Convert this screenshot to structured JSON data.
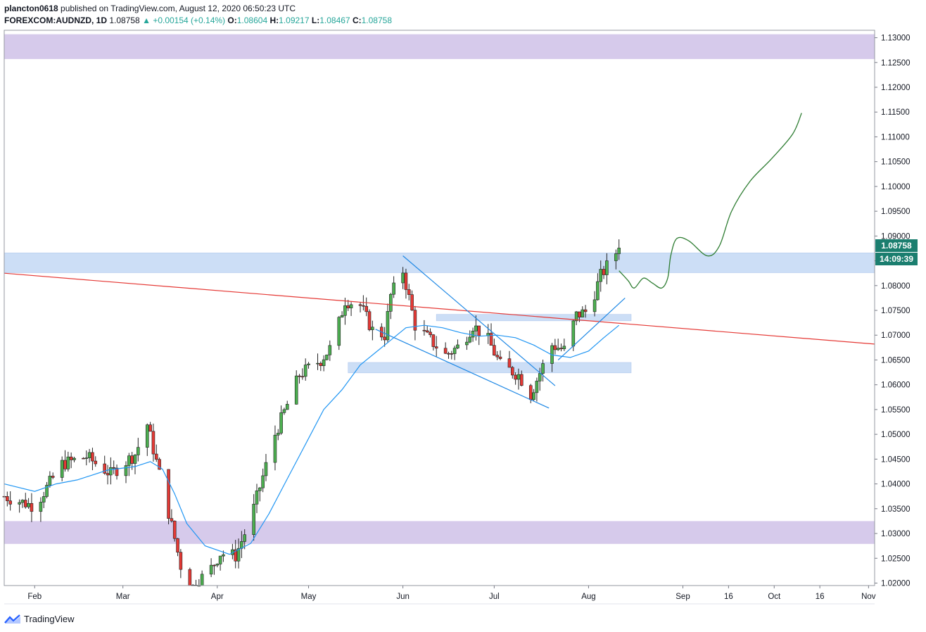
{
  "header": {
    "author": "plancton0618",
    "published": "published on TradingView.com, August 12, 2020 06:50:23 UTC",
    "symbol": "FOREXCOM:AUDNZD, 1D",
    "last": "1.08758",
    "change": "+0.00154 (+0.14%)",
    "o_label": "O:",
    "o": "1.08604",
    "h_label": "H:",
    "h": "1.09217",
    "l_label": "L:",
    "l": "1.08467",
    "c_label": "C:",
    "c": "1.08758"
  },
  "price_label": "1.08758",
  "countdown_label": "14:09:39",
  "footer": {
    "brand": "TradingView"
  },
  "colors": {
    "up": "#26a69a",
    "down": "#ef5350",
    "bull_candle": "#4caf50",
    "bear_candle": "#e53935",
    "ma": "#2196f3",
    "trendline_red": "#e53935",
    "trendline_blue": "#1e88e5",
    "projection": "#2e7d32",
    "zone_purple": "#d1c4e9",
    "zone_blue": "#bbd3f4",
    "price_badge": "#1b7e6f"
  },
  "chart_data": {
    "type": "candlestick",
    "ylim": [
      1.0195,
      1.1315
    ],
    "y_ticks": [
      "1.13000",
      "1.12500",
      "1.12000",
      "1.11500",
      "1.11000",
      "1.10500",
      "1.10000",
      "1.09500",
      "1.09000",
      "1.08500",
      "1.08000",
      "1.07500",
      "1.07000",
      "1.06500",
      "1.06000",
      "1.05500",
      "1.05000",
      "1.04500",
      "1.04000",
      "1.03500",
      "1.03000",
      "1.02500",
      "1.02000"
    ],
    "x_ticks": [
      {
        "label": "Feb",
        "date": "2020-02-01"
      },
      {
        "label": "Mar",
        "date": "2020-03-01"
      },
      {
        "label": "Apr",
        "date": "2020-04-01"
      },
      {
        "label": "May",
        "date": "2020-05-01"
      },
      {
        "label": "Jun",
        "date": "2020-06-01"
      },
      {
        "label": "Jul",
        "date": "2020-07-01"
      },
      {
        "label": "Aug",
        "date": "2020-08-01"
      },
      {
        "label": "Sep",
        "date": "2020-09-01"
      },
      {
        "label": "16",
        "date": "2020-09-16"
      },
      {
        "label": "Oct",
        "date": "2020-10-01"
      },
      {
        "label": "16",
        "date": "2020-10-16"
      },
      {
        "label": "Nov",
        "date": "2020-11-01"
      }
    ],
    "zones": [
      {
        "color": "purple",
        "from": 1.1257,
        "to": 1.1307
      },
      {
        "color": "purple",
        "from": 1.0279,
        "to": 1.0325
      },
      {
        "color": "blue",
        "from": 1.0826,
        "to": 1.0866
      },
      {
        "color": "blue",
        "from": 1.0729,
        "to": 1.0742
      },
      {
        "color": "blue",
        "from": 1.0624,
        "to": 1.0645
      }
    ],
    "key_dates": [
      "2020-01-22",
      "2020-02-01",
      "2020-08-11"
    ],
    "ohlc_anchor_points": [
      [
        "2020-01-22",
        1.0375
      ],
      [
        "2020-02-01",
        1.0355
      ],
      [
        "2020-02-10",
        1.044
      ],
      [
        "2020-02-18",
        1.0455
      ],
      [
        "2020-02-26",
        1.042
      ],
      [
        "2020-03-05",
        1.046
      ],
      [
        "2020-03-09",
        1.052
      ],
      [
        "2020-03-13",
        1.042
      ],
      [
        "2020-03-18",
        1.029
      ],
      [
        "2020-03-22",
        1.018
      ],
      [
        "2020-03-30",
        1.023
      ],
      [
        "2020-04-02",
        1.026
      ],
      [
        "2020-04-07",
        1.0255
      ],
      [
        "2020-04-12",
        1.033
      ],
      [
        "2020-04-20",
        1.05
      ],
      [
        "2020-04-28",
        1.062
      ],
      [
        "2020-05-05",
        1.065
      ],
      [
        "2020-05-09",
        1.068
      ],
      [
        "2020-05-13",
        1.077
      ],
      [
        "2020-05-18",
        1.076
      ],
      [
        "2020-05-22",
        1.071
      ],
      [
        "2020-05-26",
        1.07
      ],
      [
        "2020-05-28",
        1.078
      ],
      [
        "2020-06-01",
        1.083
      ],
      [
        "2020-06-05",
        1.072
      ],
      [
        "2020-06-10",
        1.069
      ],
      [
        "2020-06-15",
        1.066
      ],
      [
        "2020-06-20",
        1.068
      ],
      [
        "2020-06-24",
        1.072
      ],
      [
        "2020-06-29",
        1.069
      ],
      [
        "2020-07-03",
        1.064
      ],
      [
        "2020-07-09",
        1.062
      ],
      [
        "2020-07-13",
        1.058
      ],
      [
        "2020-07-15",
        1.061
      ],
      [
        "2020-07-20",
        1.068
      ],
      [
        "2020-07-24",
        1.067
      ],
      [
        "2020-07-28",
        1.074
      ],
      [
        "2020-08-01",
        1.075
      ],
      [
        "2020-08-05",
        1.082
      ],
      [
        "2020-08-11",
        1.0876
      ]
    ],
    "ma_points": [
      [
        "2020-01-22",
        1.04
      ],
      [
        "2020-02-01",
        1.0385
      ],
      [
        "2020-02-08",
        1.04
      ],
      [
        "2020-02-15",
        1.0408
      ],
      [
        "2020-02-25",
        1.0428
      ],
      [
        "2020-03-05",
        1.0435
      ],
      [
        "2020-03-10",
        1.0445
      ],
      [
        "2020-03-14",
        1.043
      ],
      [
        "2020-03-18",
        1.038
      ],
      [
        "2020-03-22",
        1.032
      ],
      [
        "2020-03-28",
        1.0275
      ],
      [
        "2020-04-05",
        1.0258
      ],
      [
        "2020-04-12",
        1.028
      ],
      [
        "2020-04-18",
        1.034
      ],
      [
        "2020-04-24",
        1.041
      ],
      [
        "2020-04-30",
        1.048
      ],
      [
        "2020-05-06",
        1.055
      ],
      [
        "2020-05-12",
        1.059
      ],
      [
        "2020-05-18",
        1.064
      ],
      [
        "2020-05-23",
        1.0665
      ],
      [
        "2020-05-28",
        1.069
      ],
      [
        "2020-06-02",
        1.0715
      ],
      [
        "2020-06-08",
        1.072
      ],
      [
        "2020-06-14",
        1.0715
      ],
      [
        "2020-06-20",
        1.0705
      ],
      [
        "2020-06-26",
        1.0698
      ],
      [
        "2020-07-02",
        1.07
      ],
      [
        "2020-07-08",
        1.0695
      ],
      [
        "2020-07-14",
        1.068
      ],
      [
        "2020-07-20",
        1.066
      ],
      [
        "2020-07-26",
        1.0655
      ],
      [
        "2020-08-01",
        1.0668
      ],
      [
        "2020-08-06",
        1.0695
      ],
      [
        "2020-08-11",
        1.072
      ]
    ],
    "trendline_red": [
      [
        "2020-01-22",
        1.0825
      ],
      [
        "2020-11-03",
        1.0682
      ]
    ],
    "wedge_upper": [
      [
        "2020-06-01",
        1.086
      ],
      [
        "2020-07-21",
        1.0598
      ]
    ],
    "wedge_lower": [
      [
        "2020-05-23",
        1.0712
      ],
      [
        "2020-07-19",
        1.0553
      ]
    ],
    "support_line": [
      [
        "2020-07-22",
        1.065
      ],
      [
        "2020-08-13",
        1.0775
      ]
    ],
    "projection": [
      [
        "2020-08-11",
        1.083
      ],
      [
        "2020-08-14",
        1.081
      ],
      [
        "2020-08-16",
        1.0795
      ],
      [
        "2020-08-19",
        1.0815
      ],
      [
        "2020-08-22",
        1.0805
      ],
      [
        "2020-08-25",
        1.0795
      ],
      [
        "2020-08-27",
        1.0815
      ],
      [
        "2020-08-28",
        1.086
      ],
      [
        "2020-08-30",
        1.0895
      ],
      [
        "2020-09-03",
        1.089
      ],
      [
        "2020-09-09",
        1.086
      ],
      [
        "2020-09-13",
        1.088
      ],
      [
        "2020-09-17",
        1.095
      ],
      [
        "2020-09-23",
        1.101
      ],
      [
        "2020-09-30",
        1.1055
      ],
      [
        "2020-10-07",
        1.1105
      ],
      [
        "2020-10-10",
        1.1148
      ]
    ]
  }
}
